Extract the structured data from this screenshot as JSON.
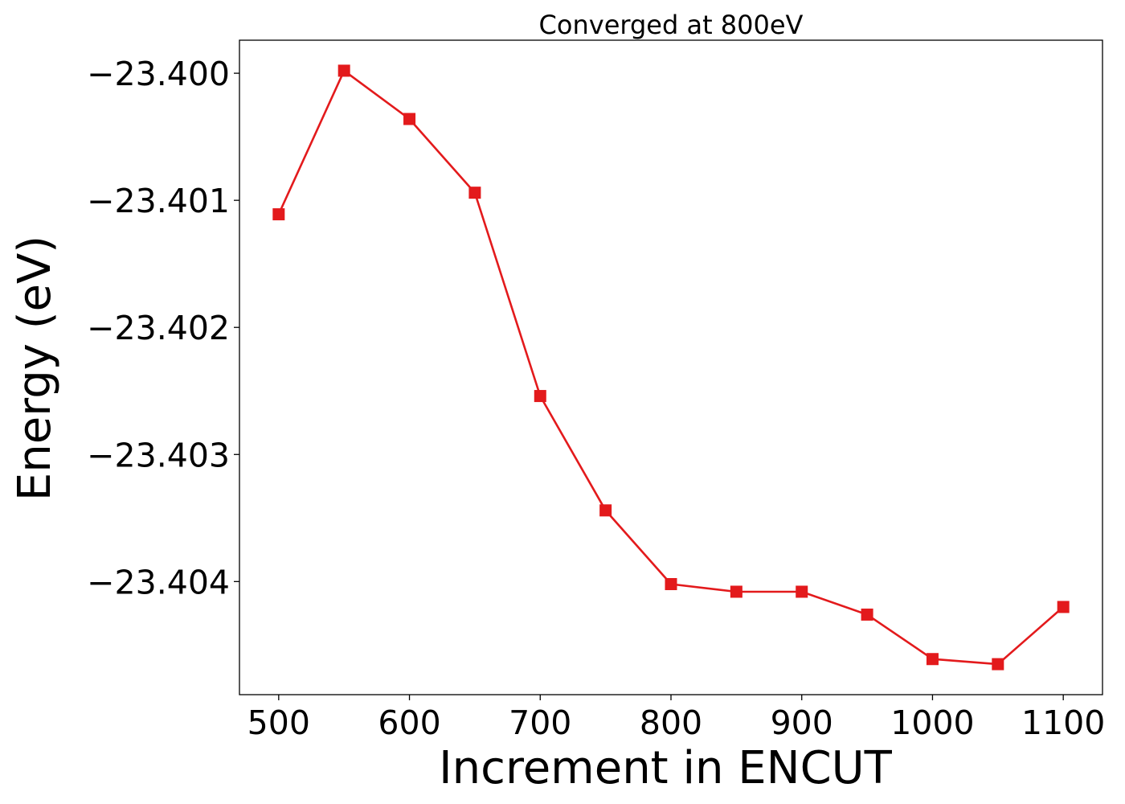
{
  "chart_data": {
    "type": "line",
    "title": "Converged at 800eV",
    "xlabel": "Increment in ENCUT",
    "ylabel": "Energy (eV)",
    "x": [
      500,
      550,
      600,
      650,
      700,
      750,
      800,
      850,
      900,
      950,
      1000,
      1050,
      1100
    ],
    "series": [
      {
        "values": [
          -23.40111,
          -23.39998,
          -23.40036,
          -23.40094,
          -23.40254,
          -23.40344,
          -23.40402,
          -23.40408,
          -23.40408,
          -23.40426,
          -23.40461,
          -23.40465,
          -23.4042
        ],
        "color": "#e31a1c",
        "marker": "square"
      }
    ],
    "xlim": [
      470,
      1130
    ],
    "ylim": [
      -23.40489,
      -23.39974
    ],
    "xticks": [
      500,
      600,
      700,
      800,
      900,
      1000,
      1100
    ],
    "xtick_labels": [
      "500",
      "600",
      "700",
      "800",
      "900",
      "1000",
      "1100"
    ],
    "yticks": [
      -23.4,
      -23.401,
      -23.402,
      -23.403,
      -23.404
    ],
    "ytick_labels": [
      "−23.400",
      "−23.401",
      "−23.402",
      "−23.403",
      "−23.404"
    ],
    "grid": false,
    "legend": "none"
  }
}
